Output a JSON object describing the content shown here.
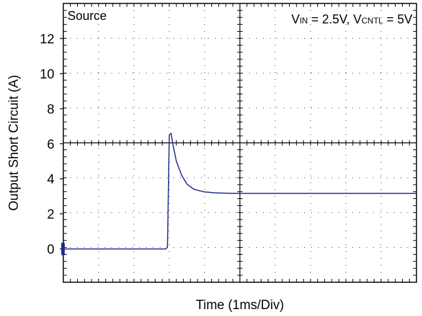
{
  "chart_data": {
    "type": "line",
    "title": "",
    "xlabel": "Time  (1ms/Div)",
    "ylabel": "Output Short Circuit (A)",
    "ylim": [
      -1.9,
      14
    ],
    "xlim": [
      0,
      10
    ],
    "yticks": [
      0,
      2,
      4,
      6,
      8,
      10,
      12
    ],
    "ytick_labels": [
      "0",
      "2",
      "4",
      "6",
      "8",
      "10",
      "12"
    ],
    "grid": true,
    "annotations": {
      "top_left": "Source",
      "top_right": {
        "v1": "V",
        "v1_sub": "IN",
        "v1_rest": " = 2.5V, ",
        "v2": "V",
        "v2_sub": "CNTL",
        "v2_rest": " = 5V"
      }
    },
    "series": [
      {
        "color": "#1f2a8c",
        "x": [
          0,
          1,
          2,
          2.9,
          2.95,
          3.0,
          3.05,
          3.1,
          3.2,
          3.35,
          3.5,
          3.7,
          4.0,
          4.3,
          4.6,
          5.0,
          6.0,
          7.0,
          8.0,
          9.0,
          10.0
        ],
        "y": [
          0,
          0,
          0,
          0,
          0.1,
          6.5,
          6.6,
          6.0,
          5.0,
          4.2,
          3.7,
          3.4,
          3.25,
          3.2,
          3.18,
          3.17,
          3.17,
          3.17,
          3.17,
          3.17,
          3.17
        ]
      }
    ]
  }
}
